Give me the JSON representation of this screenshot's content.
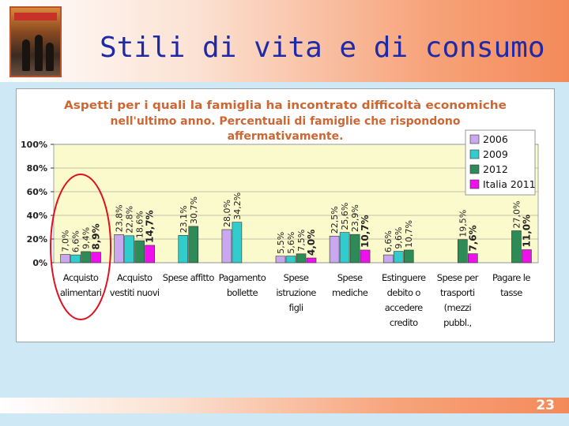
{
  "slide": {
    "title": "Stili di vita e di consumo",
    "page_number": "23"
  },
  "photo": {
    "sign_text": "ALMACENES"
  },
  "colors": {
    "title": "#1f2aa8",
    "chart_title": "#cc6633",
    "plot_bg": "#fafacc"
  },
  "chart_data": {
    "type": "bar",
    "title_lines": [
      "Aspetti per i quali la famiglia ha incontrato difficoltà economiche",
      "nell'ultimo anno. Percentuali di famiglie che rispondono",
      "affermativamente."
    ],
    "ylim": [
      0,
      100
    ],
    "yticks": [
      0,
      20,
      40,
      60,
      80,
      100
    ],
    "ytick_labels": [
      "0%",
      "20%",
      "40%",
      "60%",
      "80%",
      "100%"
    ],
    "categories": [
      [
        "Acquisto",
        "alimentari"
      ],
      [
        "Acquisto",
        "vestiti nuovi"
      ],
      [
        "Spese affitto"
      ],
      [
        "Pagamento",
        "bollette"
      ],
      [
        "Spese",
        "istruzione",
        "figli"
      ],
      [
        "Spese",
        "mediche"
      ],
      [
        "Estinguere",
        "debito o",
        "accedere",
        "credito"
      ],
      [
        "Spese per",
        "trasporti",
        "(mezzi",
        "pubbl.,"
      ],
      [
        "Pagare le",
        "tasse"
      ]
    ],
    "series": [
      {
        "name": "2006",
        "color": "#c9a8f0",
        "values": [
          7.0,
          23.8,
          null,
          28.0,
          5.5,
          22.5,
          6.6,
          null,
          null
        ],
        "labels": [
          "7,0%",
          "23,8%",
          "",
          "28,0%",
          "5,5%",
          "22,5%",
          "6,6%",
          "",
          ""
        ]
      },
      {
        "name": "2009",
        "color": "#33cccc",
        "values": [
          6.6,
          22.8,
          23.1,
          34.2,
          5.6,
          25.6,
          9.6,
          null,
          null
        ],
        "labels": [
          "6,6%",
          "22,8%",
          "23,1%",
          "34,2%",
          "5,6%",
          "25,6%",
          "9,6%",
          "",
          ""
        ]
      },
      {
        "name": "2012",
        "color": "#2e8b57",
        "values": [
          9.4,
          18.6,
          30.7,
          null,
          7.5,
          23.9,
          10.7,
          19.5,
          27.0
        ],
        "labels": [
          "9,4%",
          "18,6%",
          "30,7%",
          "",
          "7,5%",
          "23,9%",
          "10,7%",
          "19,5%",
          "27,0%"
        ]
      },
      {
        "name": "Italia 2011",
        "color": "#ee11ee",
        "values": [
          8.9,
          14.7,
          null,
          null,
          4.0,
          10.7,
          null,
          7.6,
          11.0
        ],
        "labels": [
          "8,9%",
          "14,7%",
          "",
          "",
          "4,0%",
          "10,7%",
          "",
          "7,6%",
          "11,0%"
        ]
      }
    ],
    "legend_position": "top-right",
    "highlight": {
      "category_index": 0,
      "shape": "red-ellipse"
    }
  }
}
